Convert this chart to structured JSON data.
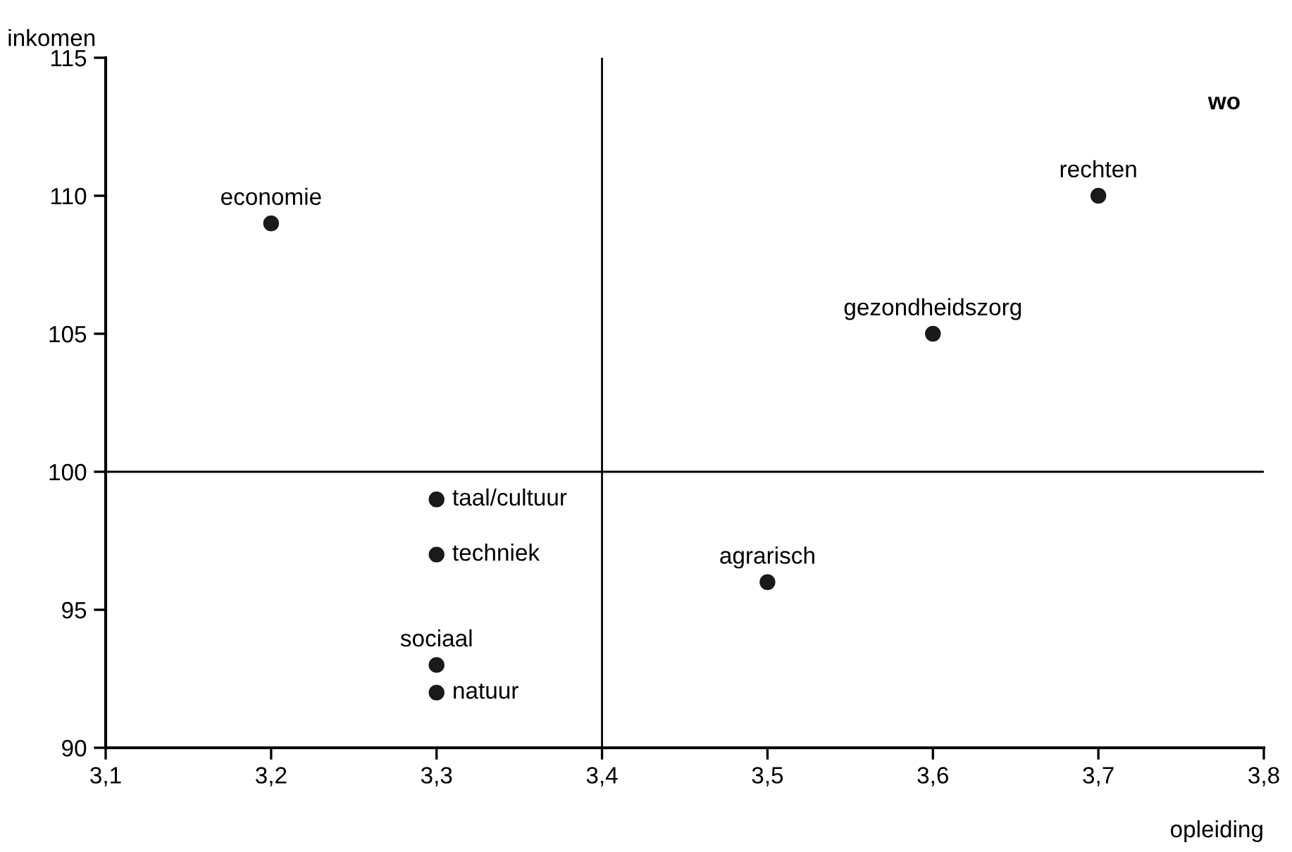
{
  "chart_data": {
    "type": "scatter",
    "xlabel": "opleiding",
    "ylabel": "inkomen",
    "marker": "circle",
    "grid": false,
    "legend": false,
    "series": [
      {
        "color": "#1a1a1a",
        "x": [
          3.2,
          3.7,
          3.6,
          3.3,
          3.3,
          3.5,
          3.3,
          3.3
        ],
        "values": [
          109,
          110,
          105,
          99,
          97,
          96,
          93,
          92
        ]
      }
    ],
    "xlim": [
      3.1,
      3.8
    ],
    "xticks": [
      {
        "value": 3.1,
        "label": "3,1"
      },
      {
        "value": 3.2,
        "label": "3,2"
      },
      {
        "value": 3.3,
        "label": "3,3"
      },
      {
        "value": 3.4,
        "label": "3,4"
      },
      {
        "value": 3.5,
        "label": "3,5"
      },
      {
        "value": 3.6,
        "label": "3,6"
      },
      {
        "value": 3.7,
        "label": "3,7"
      },
      {
        "value": 3.8,
        "label": "3,8"
      }
    ],
    "ylim": [
      90,
      115
    ],
    "yticks": [
      90,
      95,
      100,
      105,
      110,
      115
    ],
    "ref_lines": [
      {
        "axis": "x",
        "value": 3.4,
        "color": "#000000"
      },
      {
        "axis": "y",
        "value": 100,
        "color": "#000000"
      }
    ],
    "annotations": [
      {
        "text": "economie",
        "x": 3.2,
        "y": 109
      },
      {
        "text": "rechten",
        "x": 3.7,
        "y": 110
      },
      {
        "text": "gezondheidszorg",
        "x": 3.6,
        "y": 105
      },
      {
        "text": "taal/cultuur",
        "x": 3.3,
        "y": 99
      },
      {
        "text": "techniek",
        "x": 3.3,
        "y": 97
      },
      {
        "text": "agrarisch",
        "x": 3.5,
        "y": 96
      },
      {
        "text": "sociaal",
        "x": 3.3,
        "y": 93
      },
      {
        "text": "natuur",
        "x": 3.3,
        "y": 92
      },
      "wo"
    ]
  }
}
